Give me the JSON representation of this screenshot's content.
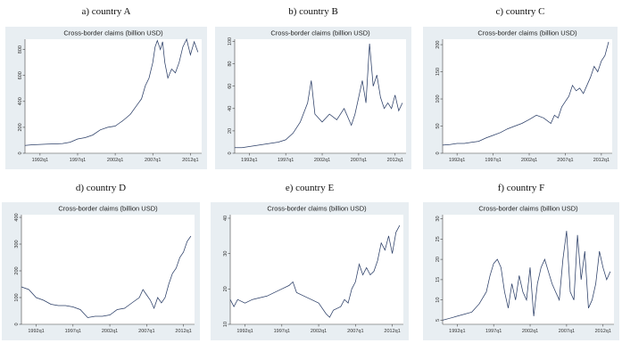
{
  "chart_data": [
    {
      "panel_label": "a) country A",
      "type": "line",
      "title": "Cross-border claims (billion USD)",
      "xlabel": "",
      "ylabel": "",
      "x_ticks": [
        "1992q1",
        "1997q1",
        "2002q1",
        "2007q1",
        "2012q1"
      ],
      "xlim": [
        1990.0,
        2013.5
      ],
      "y_ticks": [
        0,
        200,
        400,
        600,
        800
      ],
      "ylim": [
        0,
        880
      ],
      "x": [
        1990.0,
        1991.0,
        1992.0,
        1993.0,
        1994.0,
        1995.0,
        1996.0,
        1997.0,
        1998.0,
        1999.0,
        2000.0,
        2001.0,
        2002.0,
        2002.5,
        2003.0,
        2004.0,
        2005.0,
        2005.5,
        2006.0,
        2006.5,
        2007.0,
        2007.3,
        2007.6,
        2008.0,
        2008.3,
        2008.6,
        2009.0,
        2009.5,
        2010.0,
        2010.5,
        2011.0,
        2011.5,
        2012.0,
        2012.5,
        2013.0
      ],
      "values": [
        60,
        65,
        68,
        70,
        72,
        75,
        85,
        110,
        120,
        140,
        180,
        200,
        210,
        230,
        250,
        300,
        380,
        420,
        520,
        580,
        700,
        820,
        870,
        800,
        860,
        700,
        580,
        650,
        620,
        700,
        820,
        880,
        760,
        860,
        780
      ]
    },
    {
      "panel_label": "b) country B",
      "type": "line",
      "title": "Cross-border claims (billion USD)",
      "xlabel": "",
      "ylabel": "",
      "x_ticks": [
        "1992q1",
        "1997q1",
        "2002q1",
        "2007q1",
        "2012q1"
      ],
      "xlim": [
        1990.0,
        2013.5
      ],
      "y_ticks": [
        0,
        20,
        40,
        60,
        80,
        100
      ],
      "ylim": [
        0,
        102
      ],
      "x": [
        1990.0,
        1991.0,
        1992.0,
        1993.0,
        1994.0,
        1995.0,
        1996.0,
        1997.0,
        1998.0,
        1999.0,
        2000.0,
        2000.5,
        2001.0,
        2002.0,
        2003.0,
        2004.0,
        2005.0,
        2006.0,
        2006.5,
        2007.0,
        2007.5,
        2008.0,
        2008.5,
        2009.0,
        2009.5,
        2010.0,
        2010.5,
        2011.0,
        2011.5,
        2012.0,
        2012.5,
        2013.0
      ],
      "values": [
        5,
        5,
        6,
        7,
        8,
        9,
        10,
        12,
        18,
        28,
        45,
        65,
        35,
        28,
        35,
        30,
        40,
        25,
        35,
        50,
        65,
        45,
        98,
        60,
        70,
        50,
        40,
        45,
        40,
        52,
        38,
        45
      ]
    },
    {
      "panel_label": "c) country C",
      "type": "line",
      "title": "Cross-border claims (billion USD)",
      "xlabel": "",
      "ylabel": "",
      "x_ticks": [
        "1992q1",
        "1997q1",
        "2002q1",
        "2007q1",
        "2012q1"
      ],
      "xlim": [
        1990.0,
        2013.5
      ],
      "y_ticks": [
        0,
        50,
        100,
        150,
        200
      ],
      "ylim": [
        0,
        210
      ],
      "x": [
        1990.0,
        1991.0,
        1992.0,
        1993.0,
        1994.0,
        1995.0,
        1996.0,
        1997.0,
        1998.0,
        1999.0,
        2000.0,
        2001.0,
        2002.0,
        2003.0,
        2004.0,
        2005.0,
        2005.5,
        2006.0,
        2006.5,
        2007.0,
        2007.5,
        2008.0,
        2008.5,
        2009.0,
        2009.5,
        2010.0,
        2010.5,
        2011.0,
        2011.5,
        2012.0,
        2012.5,
        2013.0
      ],
      "values": [
        15,
        16,
        18,
        18,
        20,
        22,
        28,
        33,
        38,
        45,
        50,
        55,
        62,
        70,
        65,
        55,
        70,
        65,
        85,
        95,
        105,
        125,
        115,
        120,
        110,
        125,
        140,
        160,
        150,
        170,
        180,
        205
      ]
    },
    {
      "panel_label": "d) country D",
      "type": "line",
      "title": "Cross-border claims (billion USD)",
      "xlabel": "",
      "ylabel": "",
      "x_ticks": [
        "1992q1",
        "1997q1",
        "2002q1",
        "2007q1",
        "2012q1"
      ],
      "xlim": [
        1990.0,
        2013.5
      ],
      "y_ticks": [
        0,
        100,
        200,
        300,
        400
      ],
      "ylim": [
        0,
        410
      ],
      "x": [
        1990.0,
        1991.0,
        1992.0,
        1993.0,
        1994.0,
        1995.0,
        1996.0,
        1997.0,
        1998.0,
        1999.0,
        2000.0,
        2001.0,
        2002.0,
        2003.0,
        2004.0,
        2005.0,
        2006.0,
        2006.5,
        2007.0,
        2007.5,
        2008.0,
        2008.5,
        2009.0,
        2009.5,
        2010.0,
        2010.5,
        2011.0,
        2011.5,
        2012.0,
        2012.5,
        2013.0
      ],
      "values": [
        140,
        130,
        100,
        90,
        75,
        70,
        70,
        65,
        55,
        25,
        30,
        30,
        35,
        55,
        60,
        80,
        100,
        130,
        110,
        90,
        60,
        100,
        80,
        100,
        150,
        190,
        210,
        250,
        270,
        310,
        330
      ]
    },
    {
      "panel_label": "e) country E",
      "type": "line",
      "title": "Cross-border claims (billion USD)",
      "xlabel": "",
      "ylabel": "",
      "x_ticks": [
        "1992q1",
        "1997q1",
        "2002q1",
        "2007q1",
        "2012q1"
      ],
      "xlim": [
        1990.0,
        2013.5
      ],
      "y_ticks": [
        10,
        20,
        30,
        40
      ],
      "ylim": [
        10,
        41
      ],
      "x": [
        1990.0,
        1990.5,
        1991.0,
        1992.0,
        1993.0,
        1994.0,
        1995.0,
        1996.0,
        1997.0,
        1998.0,
        1998.5,
        1999.0,
        2000.0,
        2001.0,
        2002.0,
        2003.0,
        2003.5,
        2004.0,
        2005.0,
        2005.5,
        2006.0,
        2006.5,
        2007.0,
        2007.5,
        2008.0,
        2008.5,
        2009.0,
        2009.5,
        2010.0,
        2010.5,
        2011.0,
        2011.5,
        2012.0,
        2012.5,
        2013.0
      ],
      "values": [
        17,
        15,
        17,
        16,
        17,
        17.5,
        18,
        19,
        20,
        21,
        22,
        19,
        18,
        17,
        16,
        13,
        12,
        14,
        15,
        17,
        16,
        20,
        22,
        27,
        24,
        26,
        24,
        25,
        28,
        33,
        31,
        35,
        30,
        36,
        38
      ]
    },
    {
      "panel_label": "f) country F",
      "type": "line",
      "title": "Cross-border claims (billion USD)",
      "xlabel": "",
      "ylabel": "",
      "x_ticks": [
        "1992q1",
        "1997q1",
        "2002q1",
        "2007q1",
        "2012q1"
      ],
      "xlim": [
        1990.0,
        2013.5
      ],
      "y_ticks": [
        5,
        10,
        15,
        20,
        25,
        30
      ],
      "ylim": [
        4,
        31
      ],
      "x": [
        1990.0,
        1991.0,
        1992.0,
        1993.0,
        1994.0,
        1995.0,
        1996.0,
        1996.5,
        1997.0,
        1997.5,
        1998.0,
        1998.5,
        1999.0,
        1999.5,
        2000.0,
        2000.5,
        2001.0,
        2001.5,
        2002.0,
        2002.5,
        2003.0,
        2003.5,
        2004.0,
        2004.5,
        2005.0,
        2005.5,
        2006.0,
        2006.5,
        2007.0,
        2007.5,
        2008.0,
        2008.5,
        2009.0,
        2009.5,
        2010.0,
        2010.5,
        2011.0,
        2011.5,
        2012.0,
        2012.5,
        2013.0
      ],
      "values": [
        5,
        5.5,
        6,
        6.5,
        7,
        9,
        12,
        16,
        19,
        20,
        18,
        12,
        8,
        14,
        10,
        16,
        12,
        10,
        18,
        6,
        14,
        18,
        20,
        17,
        14,
        12,
        10,
        20,
        27,
        12,
        10,
        26,
        15,
        22,
        8,
        10,
        14,
        22,
        18,
        15,
        17
      ]
    }
  ]
}
